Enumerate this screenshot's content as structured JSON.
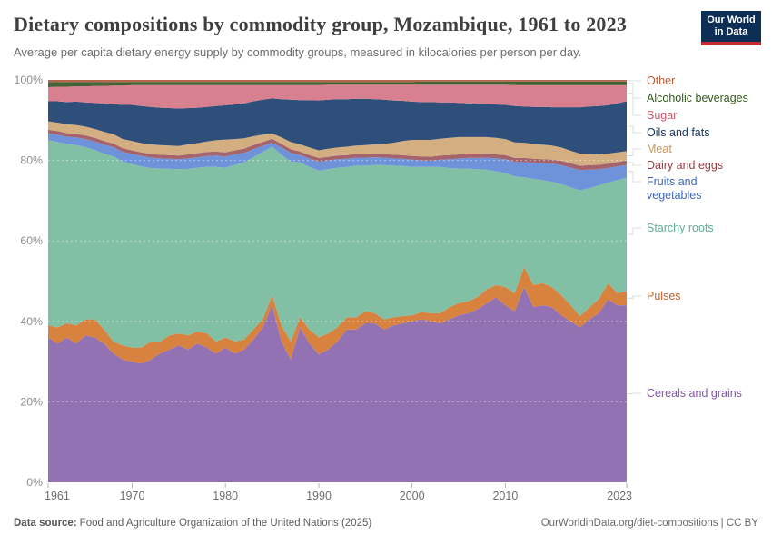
{
  "header": {
    "title": "Dietary compositions by commodity group, Mozambique, 1961 to 2023",
    "subtitle": "Average per capita dietary energy supply by commodity groups, measured in kilocalories per person per day.",
    "logo": {
      "line1": "Our World",
      "line2": "in Data",
      "bg": "#0d2f56",
      "accent": "#c52a32"
    }
  },
  "footer": {
    "source_label": "Data source:",
    "source_text": "Food and Agriculture Organization of the United Nations (2025)",
    "right_text": "OurWorldinData.org/diet-compositions | CC BY"
  },
  "chart_data": {
    "type": "area",
    "stacking": "percent",
    "title": "Dietary compositions by commodity group, Mozambique, 1961 to 2023",
    "grid": "dashed-horizontal",
    "legend_position": "right",
    "ylim": [
      0,
      100
    ],
    "y_tick_values": [
      0,
      20,
      40,
      60,
      80,
      100
    ],
    "y_tick_labels": [
      "0%",
      "20%",
      "40%",
      "60%",
      "80%",
      "100%"
    ],
    "x_tick_values": [
      1961,
      1970,
      1980,
      1990,
      2000,
      2010,
      2023
    ],
    "x_tick_labels": [
      "1961",
      "1970",
      "1980",
      "1990",
      "2000",
      "2010",
      "2023"
    ],
    "x": [
      1961,
      1962,
      1963,
      1964,
      1965,
      1966,
      1967,
      1968,
      1969,
      1970,
      1971,
      1972,
      1973,
      1974,
      1975,
      1976,
      1977,
      1978,
      1979,
      1980,
      1981,
      1982,
      1983,
      1984,
      1985,
      1986,
      1987,
      1988,
      1989,
      1990,
      1991,
      1992,
      1993,
      1994,
      1995,
      1996,
      1997,
      1998,
      1999,
      2000,
      2001,
      2002,
      2003,
      2004,
      2005,
      2006,
      2007,
      2008,
      2009,
      2010,
      2011,
      2012,
      2013,
      2014,
      2015,
      2016,
      2017,
      2018,
      2019,
      2020,
      2021,
      2022,
      2023
    ],
    "series": [
      {
        "name": "Cereals and grains",
        "legend_lines": [
          "Cereals and grains"
        ],
        "fill": "#9372b4",
        "text_color": "#8355a8",
        "values": [
          36,
          34.5,
          36,
          34.5,
          36.5,
          36,
          34.5,
          32,
          30.5,
          30,
          29.5,
          30.5,
          32,
          33,
          34,
          33,
          34.5,
          33.5,
          32,
          33.5,
          32,
          33,
          35.5,
          38.5,
          44,
          35,
          30.5,
          38.5,
          34.5,
          31.8,
          33,
          35,
          38,
          38,
          39.5,
          39.5,
          38,
          39,
          39.5,
          40,
          40.5,
          40,
          39.5,
          40.5,
          41.5,
          42,
          43,
          44.5,
          46,
          44,
          42.5,
          48.5,
          43.5,
          44,
          43.5,
          41.5,
          40,
          38.5,
          40.5,
          42,
          45.5,
          44,
          44
        ]
      },
      {
        "name": "Pulses",
        "legend_lines": [
          "Pulses"
        ],
        "fill": "#d8823f",
        "text_color": "#c4612c",
        "values": [
          3,
          4,
          3.5,
          4.5,
          4,
          4.5,
          3.5,
          3,
          3.5,
          3.5,
          4,
          4.5,
          3,
          3.5,
          3,
          3.5,
          3,
          3.5,
          3,
          2.5,
          3,
          2.5,
          2.5,
          2,
          2.5,
          4,
          4.5,
          2.5,
          3.5,
          4.2,
          4,
          3.5,
          3,
          3,
          3,
          2.5,
          2.5,
          2,
          1.8,
          1.5,
          1.8,
          2,
          2.5,
          3,
          3,
          3,
          3,
          3.5,
          3,
          4.5,
          4.5,
          5,
          5.5,
          5.5,
          5,
          5,
          4,
          2.8,
          3,
          3.5,
          4,
          3,
          3.5
        ]
      },
      {
        "name": "Starchy roots",
        "legend_lines": [
          "Starchy roots"
        ],
        "fill": "#81c0a5",
        "text_color": "#5fae92",
        "values": [
          46,
          46.1,
          44.6,
          44.8,
          42.8,
          42.1,
          43.7,
          46,
          45.7,
          45.6,
          45,
          43.1,
          43,
          41.4,
          40.8,
          41.4,
          40.7,
          41.4,
          43.4,
          42.2,
          43.9,
          44,
          42.8,
          41.6,
          36.9,
          42.4,
          44.7,
          38.5,
          40.4,
          41.5,
          40.8,
          39.7,
          37.4,
          37.7,
          36.2,
          36.9,
          38.3,
          37.7,
          37.3,
          36.9,
          36.1,
          36.4,
          36.4,
          34.6,
          33.5,
          33,
          31.8,
          29.7,
          28.3,
          28.3,
          29,
          22.3,
          26.4,
          25.6,
          26.2,
          27.6,
          29.3,
          31.3,
          29.6,
          28.3,
          25,
          28.1,
          28.2
        ]
      },
      {
        "name": "Fruits and vegetables",
        "legend_lines": [
          "Fruits and",
          "vegetables"
        ],
        "fill": "#6e93da",
        "text_color": "#4068b8",
        "values": [
          1.7,
          1.8,
          1.8,
          1.9,
          2,
          2.1,
          2.2,
          2.3,
          2.4,
          2.5,
          2.6,
          2.6,
          2.5,
          2.5,
          2.5,
          2.6,
          2.6,
          2.7,
          2.8,
          2.8,
          2.6,
          2.4,
          2,
          1.5,
          1,
          1.8,
          2.2,
          1.8,
          2,
          2.2,
          2.2,
          2.1,
          2,
          2,
          2,
          1.9,
          1.9,
          1.8,
          1.8,
          1.8,
          1.6,
          1.5,
          1.8,
          2.2,
          2.5,
          2.6,
          2.8,
          3,
          3.2,
          3.5,
          3.6,
          3.8,
          4,
          4.2,
          4.5,
          4.7,
          4.9,
          5,
          4.6,
          4,
          3.6,
          3.4,
          3.2
        ]
      },
      {
        "name": "Dairy and eggs",
        "legend_lines": [
          "Dairy and eggs"
        ],
        "fill": "#a5646c",
        "text_color": "#963b42",
        "values": [
          0.9,
          0.9,
          0.9,
          0.9,
          0.9,
          0.9,
          0.9,
          0.9,
          0.9,
          0.9,
          0.9,
          0.9,
          0.9,
          0.9,
          0.9,
          1,
          1,
          1,
          1,
          1,
          1,
          1,
          1,
          1,
          1,
          0.9,
          0.9,
          0.9,
          0.9,
          0.9,
          0.9,
          0.9,
          0.9,
          0.9,
          0.9,
          0.9,
          0.9,
          0.9,
          0.9,
          0.9,
          1,
          1,
          1,
          1,
          1,
          1,
          1,
          1,
          1,
          1,
          1,
          1,
          1,
          1,
          1,
          1.1,
          1.1,
          1.1,
          1.1,
          1.1,
          1.1,
          1.1,
          1.1
        ]
      },
      {
        "name": "Meat",
        "legend_lines": [
          "Meat"
        ],
        "fill": "#d2ae80",
        "text_color": "#c49761",
        "values": [
          2.1,
          2.1,
          2.2,
          2.2,
          2.2,
          2.2,
          2.3,
          2.3,
          2.3,
          2.3,
          2.3,
          2.4,
          2.4,
          2.4,
          2.4,
          2.5,
          2.5,
          2.6,
          2.8,
          3.2,
          2.8,
          2.6,
          2.2,
          1.8,
          1.3,
          1.6,
          1.8,
          1.8,
          1.9,
          1.9,
          2,
          2,
          2.1,
          2.1,
          2.2,
          2.3,
          2.5,
          3,
          3.5,
          4,
          4.1,
          4.2,
          4.2,
          4.3,
          4.3,
          4.2,
          4.2,
          4.1,
          4.1,
          4,
          3.9,
          3.8,
          3.7,
          3.6,
          3.5,
          3.3,
          3.1,
          3,
          2.8,
          2.6,
          2.5,
          2.4,
          2.3
        ]
      },
      {
        "name": "Oils and fats",
        "legend_lines": [
          "Oils and fats"
        ],
        "fill": "#2f4f7b",
        "text_color": "#16355e",
        "values": [
          5,
          5.3,
          5.5,
          5.8,
          6,
          6.5,
          7,
          7.5,
          8.5,
          9,
          9.2,
          9.3,
          9.3,
          9.3,
          9.3,
          9,
          8.8,
          8.6,
          8.5,
          8.5,
          8.6,
          8.7,
          8.7,
          8.7,
          8.7,
          9.5,
          10.5,
          11,
          11.8,
          12.4,
          12.2,
          12,
          11.8,
          11.6,
          11.5,
          11.2,
          11,
          10.5,
          10,
          9.5,
          9.4,
          9.4,
          9,
          8.8,
          8.5,
          8.4,
          8.3,
          8.2,
          8.3,
          8.5,
          9,
          9,
          9.2,
          9.4,
          9.5,
          10,
          10.8,
          11.5,
          11.8,
          12,
          12,
          12.2,
          12.4
        ]
      },
      {
        "name": "Sugar",
        "legend_lines": [
          "Sugar"
        ],
        "fill": "#d8808f",
        "text_color": "#cf556b",
        "values": [
          3.5,
          3.6,
          3.8,
          3.8,
          4,
          4.2,
          4.4,
          4.6,
          4.8,
          4.9,
          5.2,
          5.4,
          5.6,
          5.7,
          5.8,
          5.7,
          5.6,
          5.4,
          5.2,
          5,
          4.8,
          4.5,
          4,
          3.6,
          3.3,
          3.5,
          3.6,
          3.7,
          3.7,
          3.8,
          3.7,
          3.6,
          3.6,
          3.5,
          3.5,
          3.6,
          3.7,
          3.9,
          4,
          4.2,
          4.3,
          4.3,
          4.4,
          4.4,
          4.5,
          4.6,
          4.7,
          4.8,
          4.9,
          5,
          5.2,
          5.3,
          5.4,
          5.4,
          5.5,
          5.5,
          5.5,
          5.5,
          5.3,
          5.2,
          5,
          4.5,
          4
        ]
      },
      {
        "name": "Alcoholic beverages",
        "legend_lines": [
          "Alcoholic beverages"
        ],
        "fill": "#446236",
        "text_color": "#2f5a1c",
        "values": [
          1.3,
          1.2,
          1.2,
          1.1,
          1.1,
          1,
          1,
          0.9,
          0.9,
          0.8,
          0.8,
          0.8,
          0.8,
          0.8,
          0.8,
          0.8,
          0.8,
          0.8,
          0.8,
          0.8,
          0.8,
          0.8,
          0.8,
          0.8,
          0.8,
          0.8,
          0.8,
          0.8,
          0.8,
          0.8,
          0.7,
          0.7,
          0.7,
          0.7,
          0.7,
          0.7,
          0.7,
          0.7,
          0.7,
          0.7,
          0.8,
          0.8,
          0.8,
          0.8,
          0.8,
          0.8,
          0.8,
          0.8,
          0.8,
          0.8,
          0.9,
          0.9,
          0.9,
          0.9,
          0.9,
          0.9,
          0.9,
          0.9,
          0.9,
          0.9,
          0.9,
          0.9,
          0.9
        ]
      },
      {
        "name": "Other",
        "legend_lines": [
          "Other"
        ],
        "fill": "#b4654a",
        "text_color": "#bd5b33",
        "values": [
          0.5,
          0.5,
          0.5,
          0.5,
          0.5,
          0.5,
          0.5,
          0.5,
          0.5,
          0.5,
          0.5,
          0.5,
          0.5,
          0.5,
          0.5,
          0.5,
          0.5,
          0.5,
          0.5,
          0.5,
          0.5,
          0.5,
          0.5,
          0.5,
          0.5,
          0.5,
          0.5,
          0.5,
          0.5,
          0.5,
          0.5,
          0.5,
          0.5,
          0.5,
          0.5,
          0.5,
          0.5,
          0.5,
          0.5,
          0.5,
          0.4,
          0.4,
          0.4,
          0.4,
          0.4,
          0.4,
          0.4,
          0.4,
          0.4,
          0.4,
          0.4,
          0.4,
          0.4,
          0.4,
          0.4,
          0.4,
          0.4,
          0.4,
          0.4,
          0.4,
          0.4,
          0.4,
          0.4
        ]
      }
    ]
  }
}
